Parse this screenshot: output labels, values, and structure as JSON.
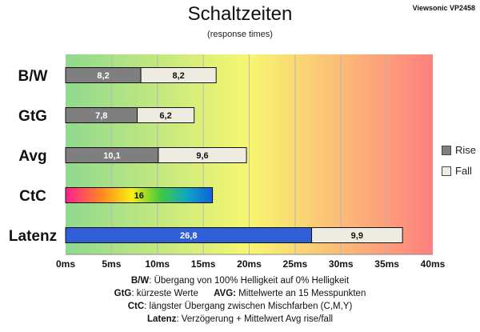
{
  "header": {
    "title": "Schaltzeiten",
    "subtitle": "(response times)",
    "monitor": "Viewsonic VP2458"
  },
  "legend": {
    "rise": "Rise",
    "fall": "Fall"
  },
  "colors": {
    "rise": "#7f7f7f",
    "fall": "#eeebe0",
    "latenz": "#2f5fd8",
    "outline": "#111111"
  },
  "chart_data": {
    "type": "bar",
    "orientation": "horizontal",
    "stacked": true,
    "title": "Schaltzeiten",
    "subtitle": "(response times)",
    "categories": [
      "B/W",
      "GtG",
      "Avg",
      "CtC",
      "Latenz"
    ],
    "series": [
      {
        "name": "Rise",
        "values": [
          8.2,
          7.8,
          10.1,
          16,
          26.8
        ],
        "labels": [
          "8,2",
          "7,8",
          "10,1",
          "16",
          "26,8"
        ]
      },
      {
        "name": "Fall",
        "values": [
          8.2,
          6.2,
          9.6,
          0,
          9.9
        ],
        "labels": [
          "8,2",
          "6,2",
          "9,6",
          "",
          "9,9"
        ]
      }
    ],
    "xlim": [
      0,
      40
    ],
    "xticks": [
      0,
      5,
      10,
      15,
      20,
      25,
      30,
      35,
      40
    ],
    "xtick_labels": [
      "0ms",
      "5ms",
      "10ms",
      "15ms",
      "20ms",
      "25ms",
      "30ms",
      "35ms",
      "40ms"
    ],
    "background_gradient": [
      "#8fd98f",
      "#f7f770",
      "#ff7f7f"
    ],
    "grid": true,
    "legend_position": "right"
  },
  "notes": [
    {
      "label": "B/W",
      "text": ":  Übergang von 100% Helligkeit auf 0% Helligkeit"
    },
    {
      "label": "GtG",
      "text": ": kürzeste  Werte",
      "label2": "AVG:",
      "text2": " Mittelwerte  an 15 Messpunkten"
    },
    {
      "label": "CtC",
      "text": ": längster Übergang  zwischen Mischfarben (C,M,Y)"
    },
    {
      "label": "Latenz",
      "text": ": Verzögerung  + Mittelwert  Avg rise/fall"
    }
  ]
}
